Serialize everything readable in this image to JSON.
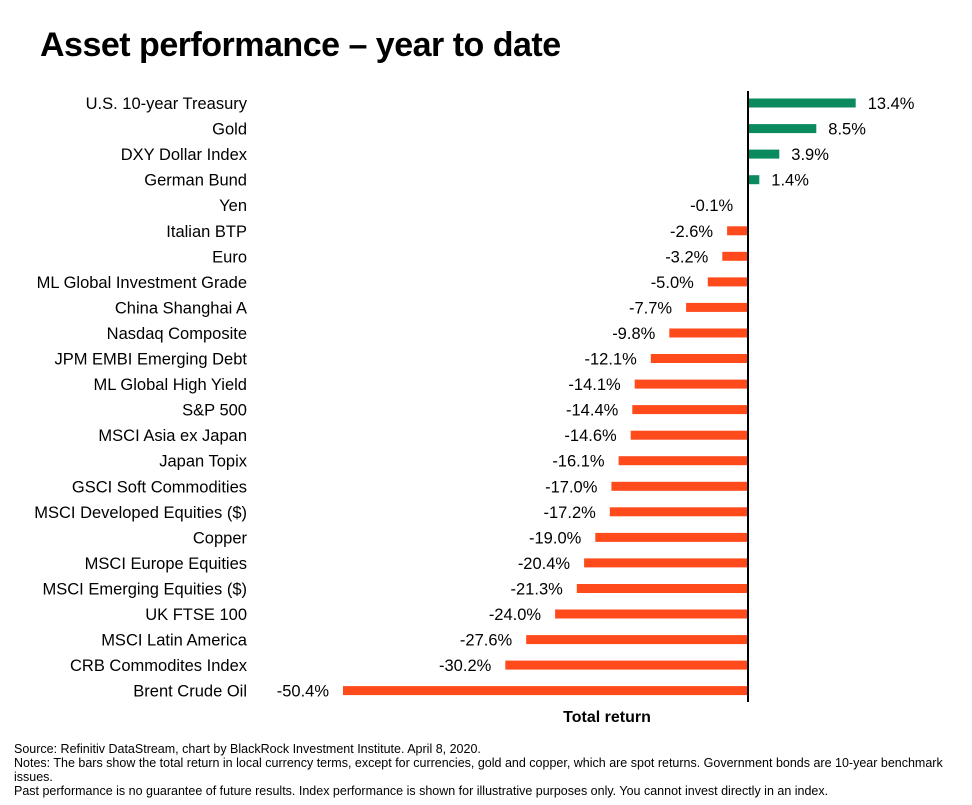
{
  "chart_data": {
    "type": "bar",
    "orientation": "horizontal",
    "title": "Asset performance – year to date",
    "xlabel": "Total return",
    "ylabel": "",
    "categories": [
      "U.S. 10-year Treasury",
      "Gold",
      "DXY Dollar Index",
      "German Bund",
      "Yen",
      "Italian BTP",
      "Euro",
      "ML Global Investment Grade",
      "China Shanghai A",
      "Nasdaq Composite",
      "JPM EMBI Emerging Debt",
      "ML Global High Yield",
      "S&P 500",
      "MSCI Asia ex Japan",
      "Japan Topix",
      "GSCI Soft Commodities",
      "MSCI Developed Equities ($)",
      "Copper",
      "MSCI Europe Equities",
      "MSCI Emerging Equities ($)",
      "UK FTSE 100",
      "MSCI Latin America",
      "CRB Commodites Index",
      "Brent Crude Oil"
    ],
    "values": [
      13.4,
      8.5,
      3.9,
      1.4,
      -0.1,
      -2.6,
      -3.2,
      -5.0,
      -7.7,
      -9.8,
      -12.1,
      -14.1,
      -14.4,
      -14.6,
      -16.1,
      -17.0,
      -17.2,
      -19.0,
      -20.4,
      -21.3,
      -24.0,
      -27.6,
      -30.2,
      -50.4
    ],
    "value_labels": [
      "13.4%",
      "8.5%",
      "3.9%",
      "1.4%",
      "-0.1%",
      "-2.6%",
      "-3.2%",
      "-5.0%",
      "-7.7%",
      "-9.8%",
      "-12.1%",
      "-14.1%",
      "-14.4%",
      "-14.6%",
      "-16.1%",
      "-17.0%",
      "-17.2%",
      "-19.0%",
      "-20.4%",
      "-21.3%",
      "-24.0%",
      "-27.6%",
      "-30.2%",
      "-50.4%"
    ],
    "xlim": [
      -50.4,
      13.4
    ],
    "grid": false,
    "colors": {
      "positive": "#0b8a5e",
      "negative": "#ff4a1c",
      "axis": "#000000"
    }
  },
  "footer": {
    "source": "Source: Refinitiv DataStream, chart by BlackRock Investment Institute. April 8, 2020.",
    "notes": "Notes: The bars show the total return in local currency terms, except for currencies, gold and copper, which are spot returns. Government bonds are 10-year benchmark issues.",
    "disclaimer": "Past performance is no guarantee of future results.  Index performance is shown for illustrative purposes only.  You cannot invest directly in an index."
  }
}
